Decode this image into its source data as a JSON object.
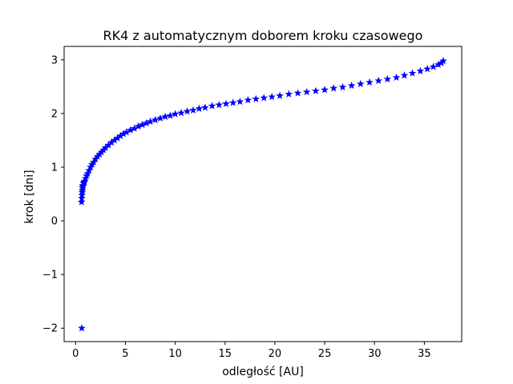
{
  "chart_data": {
    "type": "scatter",
    "title": "RK4 z automatycznym doborem kroku czasowego",
    "xlabel": "odległość [AU]",
    "ylabel": "krok [dni]",
    "xlim": [
      -1.15,
      38.75
    ],
    "ylim": [
      -2.25,
      3.25
    ],
    "xticks": [
      0,
      5,
      10,
      15,
      20,
      25,
      30,
      35
    ],
    "xtick_labels": [
      "0",
      "5",
      "10",
      "15",
      "20",
      "25",
      "30",
      "35"
    ],
    "yticks": [
      -2,
      -1,
      0,
      1,
      2,
      3
    ],
    "ytick_labels": [
      "−2",
      "−1",
      "0",
      "1",
      "2",
      "3"
    ],
    "grid": false,
    "legend": "none",
    "marker": "star",
    "color": "#0000ff",
    "series": [
      {
        "x": [
          0.6,
          0.62,
          0.64,
          0.66,
          0.68,
          0.7,
          0.72,
          0.75,
          0.8,
          0.85,
          0.9,
          1.0,
          1.1,
          1.2,
          1.35,
          1.5,
          1.65,
          1.8,
          2.0,
          2.2,
          2.4,
          2.6,
          2.8,
          3.0,
          3.3,
          3.6,
          3.9,
          4.2,
          4.5,
          4.8,
          5.1,
          5.5,
          5.9,
          6.3,
          6.7,
          7.1,
          7.5,
          8.0,
          8.5,
          9.0,
          9.5,
          10.0,
          10.6,
          11.2,
          11.8,
          12.4,
          13.0,
          13.7,
          14.4,
          15.1,
          15.8,
          16.5,
          17.3,
          18.1,
          18.9,
          19.7,
          20.5,
          21.4,
          22.3,
          23.2,
          24.1,
          25.0,
          25.9,
          26.8,
          27.7,
          28.6,
          29.5,
          30.4,
          31.3,
          32.2,
          33.0,
          33.8,
          34.6,
          35.3,
          35.9,
          36.4,
          36.7,
          36.9,
          0.62
        ],
        "y": [
          0.35,
          0.42,
          0.48,
          0.53,
          0.57,
          0.61,
          0.64,
          0.66,
          0.7,
          0.72,
          0.74,
          0.79,
          0.84,
          0.88,
          0.94,
          1.0,
          1.05,
          1.09,
          1.15,
          1.2,
          1.24,
          1.28,
          1.32,
          1.36,
          1.41,
          1.46,
          1.5,
          1.54,
          1.58,
          1.62,
          1.65,
          1.69,
          1.72,
          1.76,
          1.79,
          1.82,
          1.85,
          1.88,
          1.91,
          1.94,
          1.96,
          1.99,
          2.01,
          2.04,
          2.06,
          2.09,
          2.11,
          2.14,
          2.16,
          2.18,
          2.2,
          2.22,
          2.25,
          2.27,
          2.29,
          2.31,
          2.33,
          2.36,
          2.38,
          2.4,
          2.42,
          2.44,
          2.47,
          2.49,
          2.52,
          2.55,
          2.58,
          2.61,
          2.64,
          2.67,
          2.71,
          2.75,
          2.79,
          2.83,
          2.87,
          2.91,
          2.94,
          2.98,
          -2.0
        ]
      }
    ]
  }
}
